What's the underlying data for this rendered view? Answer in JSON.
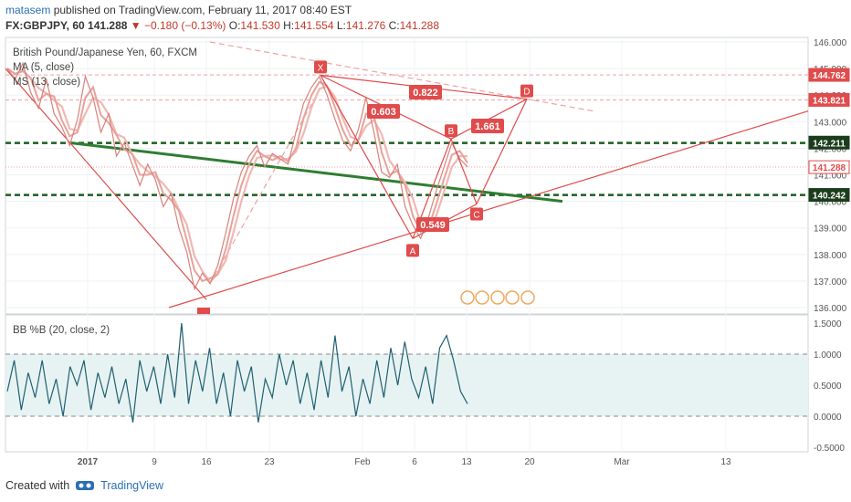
{
  "header": {
    "author": "matasem",
    "published_text": "published on TradingView.com, February 11, 2017 08:40 EST",
    "symbol": "FX:GBPJPY, 60",
    "last": "141.288",
    "change": "▼ −0.180 (−0.13%)",
    "o_label": "O:",
    "o_value": "141.530",
    "h_label": "H:",
    "h_value": "141.554",
    "l_label": "L:",
    "l_value": "141.276",
    "c_label": "C:",
    "c_value": "141.288"
  },
  "legend": {
    "title": "British Pound/Japanese Yen, 60, FXCM",
    "ma": "MA (5, close)",
    "mas": "MS (13, close)",
    "bb": "BB %B (20, close, 2)"
  },
  "footer": {
    "created_with": "Created with",
    "brand": "TradingView"
  },
  "colors": {
    "candle": "#d9827a",
    "ma": "#e7a29b",
    "mas": "#f0b8b2",
    "pattern": "#e04b4b",
    "trend_green": "#2e7d32",
    "level_dashed": "#1b5e20",
    "bb_line": "#1f5f70",
    "bb_band": "#e7f3f3"
  },
  "chart_data": [
    {
      "type": "line",
      "title": "British Pound/Japanese Yen, 60, FXCM",
      "ylim": [
        136.0,
        146.0
      ],
      "y_ticks": [
        "146.000",
        "145.000",
        "144.000",
        "143.000",
        "142.000",
        "141.000",
        "140.000",
        "139.000",
        "138.000",
        "137.000",
        "136.000"
      ],
      "x_ticks": [
        "2017",
        "9",
        "16",
        "23",
        "Feb",
        "6",
        "13",
        "20",
        "Mar",
        "13"
      ],
      "price_tags": [
        {
          "label": "144.762",
          "kind": "filled"
        },
        {
          "label": "143.821",
          "kind": "filled"
        },
        {
          "label": "142.211",
          "kind": "dark"
        },
        {
          "label": "141.288",
          "kind": "outline"
        },
        {
          "label": "140.242",
          "kind": "dark"
        }
      ],
      "levels": [
        142.2,
        140.24
      ],
      "harmonic_points": [
        {
          "label": "X",
          "date": "Jan 27",
          "price": 144.75
        },
        {
          "label": "A",
          "date": "Feb 8",
          "price": 138.6
        },
        {
          "label": "B",
          "date": "Feb 10",
          "price": 142.35
        },
        {
          "label": "C",
          "date": "Feb 14",
          "price": 139.9
        },
        {
          "label": "D",
          "date": "Feb 19",
          "price": 143.85
        }
      ],
      "ratios": [
        "0.822",
        "0.603",
        "1.661",
        "0.549"
      ],
      "series": [
        {
          "name": "GBPJPY",
          "values": [
            145.0,
            144.6,
            145.2,
            144.1,
            143.5,
            144.6,
            143.3,
            142.8,
            142.1,
            143.1,
            144.7,
            143.9,
            142.6,
            143.3,
            141.7,
            142.2,
            141.4,
            140.6,
            141.4,
            140.8,
            139.8,
            140.3,
            139.0,
            138.1,
            136.7,
            137.3,
            136.9,
            137.6,
            138.8,
            140.1,
            141.1,
            141.7,
            142.1,
            141.3,
            141.8,
            141.6,
            141.4,
            142.6,
            143.7,
            144.3,
            144.7,
            144.0,
            143.1,
            142.3,
            141.9,
            142.7,
            143.9,
            142.6,
            141.1,
            140.9,
            141.4,
            139.8,
            139.1,
            138.6,
            139.4,
            140.4,
            141.3,
            142.2,
            141.6,
            141.3
          ]
        }
      ]
    },
    {
      "type": "line",
      "title": "BB %B (20, close, 2)",
      "ylim": [
        -0.55,
        1.55
      ],
      "y_ticks": [
        "1.5000",
        "1.0000",
        "0.5000",
        "0.0000",
        "-0.5000"
      ],
      "band": [
        0.0,
        1.0
      ],
      "series": [
        {
          "name": "BB %B",
          "values": [
            0.4,
            0.9,
            0.1,
            0.7,
            0.3,
            0.9,
            0.2,
            0.6,
            0.0,
            0.8,
            0.5,
            0.9,
            0.1,
            0.7,
            0.3,
            0.8,
            0.2,
            0.6,
            -0.1,
            0.9,
            0.4,
            0.8,
            0.2,
            1.0,
            0.3,
            1.5,
            0.2,
            0.9,
            0.4,
            1.1,
            0.2,
            0.7,
            0.0,
            0.9,
            0.4,
            0.8,
            -0.1,
            0.6,
            0.3,
            1.0,
            0.5,
            0.9,
            0.2,
            0.7,
            0.1,
            0.9,
            0.3,
            1.3,
            0.4,
            0.8,
            0.0,
            0.6,
            0.2,
            0.9,
            0.3,
            1.1,
            0.5,
            1.2,
            0.6,
            0.3,
            0.8,
            0.2,
            1.1,
            1.3,
            0.9,
            0.4,
            0.2
          ]
        }
      ]
    }
  ]
}
